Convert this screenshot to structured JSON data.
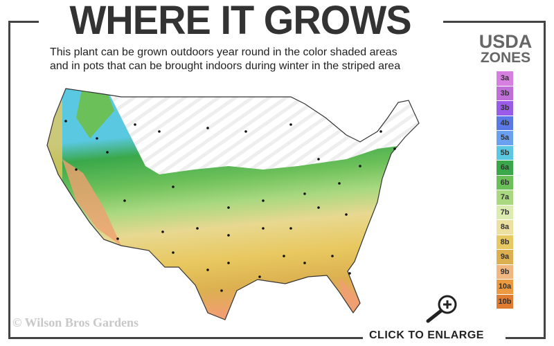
{
  "header": {
    "title": "WHERE IT GROWS",
    "subtitle_line1": "This plant can be grown outdoors year round in the color shaded areas",
    "subtitle_line2": "and in pots that can be brought indoors during winter in the striped area"
  },
  "legend": {
    "title_line1": "USDA",
    "title_line2": "ZONES",
    "zones": [
      {
        "label": "3a",
        "color": "#d77fe0"
      },
      {
        "label": "3b",
        "color": "#c06fd8"
      },
      {
        "label": "3b",
        "color": "#9a5ce8"
      },
      {
        "label": "4b",
        "color": "#5a78e6"
      },
      {
        "label": "5a",
        "color": "#6aa0f0"
      },
      {
        "label": "5b",
        "color": "#5ac8e0"
      },
      {
        "label": "6a",
        "color": "#3aa84a"
      },
      {
        "label": "6b",
        "color": "#6cc05a"
      },
      {
        "label": "7a",
        "color": "#a8d880"
      },
      {
        "label": "7b",
        "color": "#dcecb0"
      },
      {
        "label": "8a",
        "color": "#ece0a0"
      },
      {
        "label": "8b",
        "color": "#e8c860"
      },
      {
        "label": "9a",
        "color": "#dcb050"
      },
      {
        "label": "9b",
        "color": "#f0b880"
      },
      {
        "label": "10a",
        "color": "#ec9a40"
      },
      {
        "label": "10b",
        "color": "#e07c30"
      }
    ]
  },
  "map": {
    "striped_area": "white-striped",
    "colors": {
      "north": "#ffffff",
      "cyan": "#5ac8e0",
      "green": "#3aa84a",
      "lightgreen": "#a8d880",
      "yellow": "#e8c860",
      "orange": "#f0a070"
    }
  },
  "footer": {
    "copyright": "© Wilson Bros Gardens",
    "enlarge_label": "CLICK TO ENLARGE",
    "enlarge_icon": "magnifier-plus-icon"
  }
}
